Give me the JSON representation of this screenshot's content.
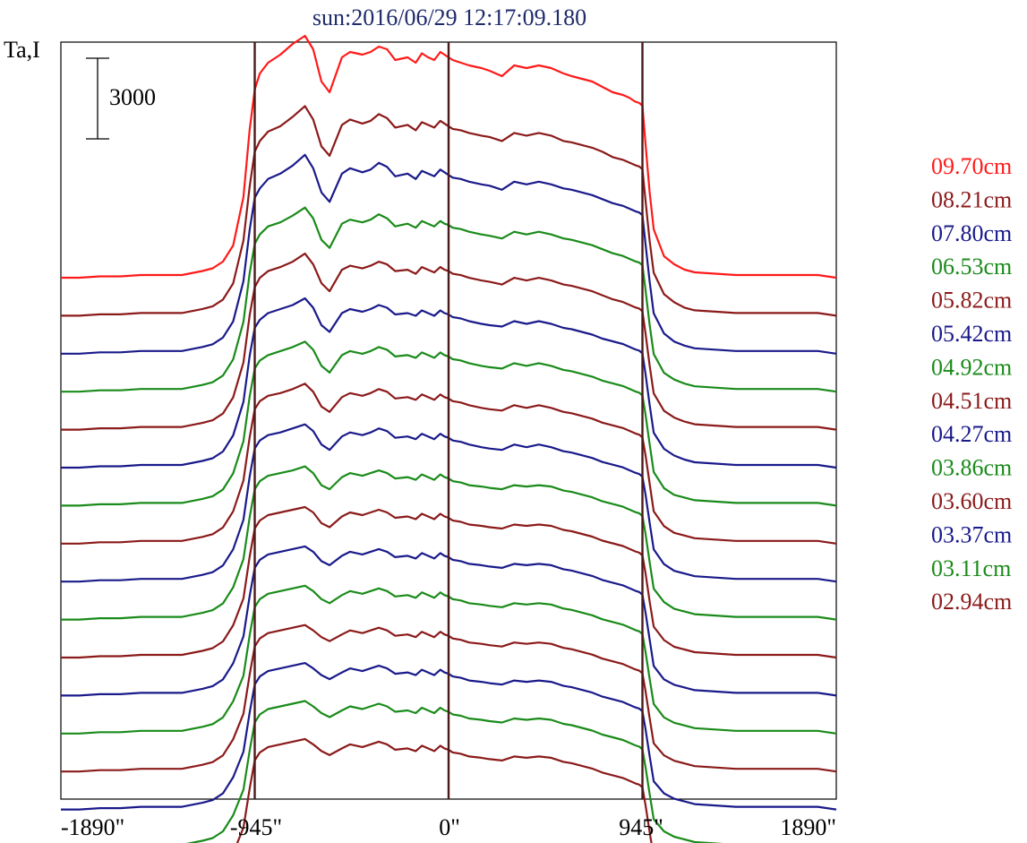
{
  "chart_data": {
    "type": "line",
    "title": "sun:2016/06/29 12:17:09.180",
    "ylabel": "Ta,I",
    "xlabel": "",
    "x_ticks": [
      "-1890\"",
      "-945\"",
      "0\"",
      "945\"",
      "1890\""
    ],
    "xlim": [
      -1890,
      1890
    ],
    "vlines": [
      -945,
      0,
      945
    ],
    "scale_bar": {
      "label": "3000",
      "value": 3000
    },
    "legend_position": "right",
    "grid": false,
    "profile_x": [
      -1890,
      -1800,
      -1700,
      -1600,
      -1500,
      -1400,
      -1300,
      -1200,
      -1150,
      -1100,
      -1050,
      -1000,
      -970,
      -945,
      -920,
      -880,
      -820,
      -760,
      -700,
      -660,
      -620,
      -580,
      -520,
      -480,
      -420,
      -380,
      -340,
      -300,
      -260,
      -200,
      -160,
      -130,
      -100,
      -70,
      -40,
      -20,
      0,
      20,
      60,
      100,
      160,
      200,
      260,
      320,
      380,
      440,
      500,
      560,
      600,
      650,
      700,
      750,
      800,
      850,
      880,
      910,
      930,
      945,
      960,
      980,
      1000,
      1050,
      1100,
      1150,
      1200,
      1300,
      1400,
      1500,
      1600,
      1700,
      1800,
      1890
    ],
    "series": [
      {
        "name": "09.70cm",
        "color": "#ff1a1a",
        "baseline": 0,
        "values": [
          0,
          0,
          50,
          50,
          100,
          100,
          100,
          250,
          350,
          600,
          1200,
          3000,
          5500,
          7000,
          7600,
          8000,
          8300,
          8700,
          9000,
          8500,
          7300,
          6900,
          8200,
          8400,
          8300,
          8400,
          8600,
          8500,
          8100,
          8200,
          8000,
          8350,
          8200,
          8100,
          8400,
          8300,
          8200,
          8100,
          8000,
          7900,
          7800,
          7700,
          7500,
          7900,
          7800,
          7900,
          7800,
          7600,
          7500,
          7400,
          7300,
          7100,
          6900,
          6800,
          6700,
          6550,
          6500,
          6400,
          5000,
          3200,
          1800,
          800,
          500,
          300,
          200,
          150,
          100,
          100,
          100,
          100,
          100,
          0
        ]
      },
      {
        "name": "08.21cm",
        "color": "#8b1a1a",
        "baseline": 0,
        "values": [
          0,
          0,
          50,
          50,
          100,
          100,
          100,
          250,
          350,
          600,
          1200,
          2800,
          4800,
          6100,
          6500,
          6850,
          7050,
          7400,
          7800,
          7300,
          6300,
          5950,
          7100,
          7300,
          7150,
          7250,
          7500,
          7350,
          7000,
          7100,
          6900,
          7200,
          7100,
          7000,
          7250,
          7150,
          7050,
          6950,
          6900,
          6800,
          6700,
          6650,
          6500,
          6800,
          6700,
          6800,
          6700,
          6500,
          6450,
          6350,
          6250,
          6100,
          5900,
          5800,
          5700,
          5600,
          5550,
          5450,
          4300,
          2800,
          1600,
          800,
          500,
          300,
          200,
          150,
          100,
          100,
          100,
          100,
          100,
          0
        ]
      },
      {
        "name": "07.80cm",
        "color": "#1a1a8b",
        "baseline": 0,
        "values": [
          0,
          0,
          50,
          50,
          100,
          100,
          100,
          250,
          350,
          600,
          1200,
          2700,
          4600,
          5800,
          6150,
          6500,
          6700,
          7000,
          7400,
          6900,
          6000,
          5650,
          6700,
          6900,
          6750,
          6850,
          7100,
          6950,
          6600,
          6700,
          6500,
          6800,
          6700,
          6600,
          6850,
          6750,
          6650,
          6550,
          6500,
          6400,
          6300,
          6250,
          6100,
          6400,
          6300,
          6400,
          6300,
          6150,
          6100,
          6000,
          5900,
          5750,
          5600,
          5500,
          5400,
          5300,
          5250,
          5150,
          4100,
          2700,
          1500,
          750,
          450,
          300,
          200,
          150,
          100,
          100,
          100,
          100,
          100,
          0
        ]
      },
      {
        "name": "06.53cm",
        "color": "#1a8b1a",
        "baseline": 0,
        "values": [
          0,
          0,
          50,
          50,
          100,
          100,
          100,
          250,
          350,
          600,
          1200,
          2600,
          4400,
          5500,
          5850,
          6150,
          6300,
          6550,
          6850,
          6450,
          5650,
          5350,
          6250,
          6400,
          6300,
          6400,
          6600,
          6450,
          6150,
          6250,
          6100,
          6350,
          6250,
          6150,
          6350,
          6250,
          6200,
          6100,
          6050,
          5950,
          5850,
          5800,
          5700,
          5950,
          5850,
          5950,
          5850,
          5700,
          5650,
          5550,
          5450,
          5300,
          5150,
          5050,
          4950,
          4850,
          4800,
          4700,
          3800,
          2500,
          1400,
          700,
          450,
          300,
          200,
          150,
          100,
          100,
          100,
          100,
          100,
          0
        ]
      },
      {
        "name": "05.82cm",
        "color": "#8b1a1a",
        "baseline": 0,
        "values": [
          0,
          0,
          50,
          50,
          100,
          100,
          100,
          250,
          350,
          600,
          1200,
          2500,
          4250,
          5300,
          5650,
          5900,
          6050,
          6250,
          6550,
          6150,
          5450,
          5150,
          5950,
          6100,
          6000,
          6100,
          6250,
          6150,
          5900,
          5950,
          5800,
          6050,
          5950,
          5850,
          6050,
          5950,
          5900,
          5800,
          5750,
          5650,
          5550,
          5500,
          5400,
          5650,
          5550,
          5650,
          5550,
          5400,
          5350,
          5250,
          5150,
          5000,
          4850,
          4750,
          4650,
          4550,
          4500,
          4400,
          3600,
          2400,
          1350,
          700,
          450,
          300,
          200,
          150,
          100,
          100,
          100,
          100,
          100,
          0
        ]
      },
      {
        "name": "05.42cm",
        "color": "#1a1a8b",
        "baseline": 0,
        "values": [
          0,
          0,
          50,
          50,
          100,
          100,
          100,
          250,
          350,
          600,
          1200,
          2450,
          4150,
          5200,
          5500,
          5750,
          5900,
          6050,
          6300,
          5950,
          5300,
          5050,
          5750,
          5900,
          5800,
          5900,
          6050,
          5950,
          5700,
          5750,
          5650,
          5850,
          5750,
          5650,
          5850,
          5750,
          5700,
          5600,
          5550,
          5450,
          5350,
          5300,
          5250,
          5450,
          5350,
          5450,
          5350,
          5200,
          5150,
          5050,
          4950,
          4800,
          4700,
          4600,
          4500,
          4400,
          4350,
          4250,
          3500,
          2350,
          1300,
          700,
          450,
          300,
          200,
          150,
          100,
          100,
          100,
          100,
          100,
          0
        ]
      },
      {
        "name": "04.92cm",
        "color": "#1a8b1a",
        "baseline": 0,
        "values": [
          0,
          0,
          50,
          50,
          100,
          100,
          100,
          250,
          350,
          600,
          1200,
          2400,
          4050,
          5100,
          5400,
          5600,
          5750,
          5900,
          6100,
          5800,
          5200,
          4950,
          5600,
          5750,
          5650,
          5750,
          5900,
          5800,
          5550,
          5600,
          5500,
          5700,
          5600,
          5500,
          5700,
          5600,
          5550,
          5450,
          5400,
          5300,
          5200,
          5150,
          5100,
          5300,
          5200,
          5300,
          5200,
          5050,
          5000,
          4900,
          4800,
          4650,
          4550,
          4450,
          4350,
          4250,
          4200,
          4100,
          3400,
          2300,
          1250,
          650,
          400,
          300,
          200,
          150,
          100,
          100,
          100,
          100,
          100,
          0
        ]
      },
      {
        "name": "04.51cm",
        "color": "#8b1a1a",
        "baseline": 0,
        "values": [
          0,
          0,
          50,
          50,
          100,
          100,
          100,
          250,
          350,
          600,
          1200,
          2350,
          3950,
          5000,
          5300,
          5500,
          5600,
          5750,
          5950,
          5650,
          5100,
          4900,
          5450,
          5600,
          5500,
          5600,
          5750,
          5650,
          5400,
          5450,
          5350,
          5550,
          5450,
          5350,
          5550,
          5450,
          5400,
          5300,
          5250,
          5150,
          5050,
          5000,
          4950,
          5150,
          5050,
          5150,
          5050,
          4900,
          4850,
          4750,
          4650,
          4500,
          4400,
          4300,
          4200,
          4100,
          4050,
          3950,
          3300,
          2250,
          1200,
          650,
          400,
          300,
          200,
          150,
          100,
          100,
          100,
          100,
          100,
          0
        ]
      },
      {
        "name": "04.27cm",
        "color": "#1a1a8b",
        "baseline": 0,
        "values": [
          0,
          0,
          50,
          50,
          100,
          100,
          100,
          250,
          350,
          600,
          1200,
          2300,
          3900,
          4950,
          5250,
          5450,
          5550,
          5700,
          5850,
          5600,
          5100,
          4900,
          5400,
          5550,
          5450,
          5550,
          5700,
          5600,
          5350,
          5400,
          5300,
          5500,
          5400,
          5300,
          5500,
          5400,
          5350,
          5250,
          5200,
          5100,
          5000,
          4950,
          4900,
          5100,
          5000,
          5100,
          5000,
          4850,
          4800,
          4700,
          4600,
          4450,
          4350,
          4250,
          4150,
          4050,
          4000,
          3900,
          3250,
          2200,
          1200,
          650,
          400,
          300,
          200,
          150,
          100,
          100,
          100,
          100,
          100,
          0
        ]
      },
      {
        "name": "03.86cm",
        "color": "#1a8b1a",
        "baseline": 0,
        "values": [
          0,
          0,
          50,
          50,
          100,
          100,
          100,
          250,
          350,
          600,
          1200,
          2250,
          3800,
          4850,
          5150,
          5350,
          5450,
          5550,
          5700,
          5450,
          5000,
          4850,
          5300,
          5450,
          5350,
          5450,
          5550,
          5450,
          5250,
          5300,
          5200,
          5400,
          5300,
          5200,
          5400,
          5300,
          5250,
          5150,
          5100,
          5000,
          4950,
          4900,
          4850,
          5000,
          4950,
          5000,
          4950,
          4800,
          4750,
          4650,
          4550,
          4400,
          4300,
          4200,
          4100,
          4000,
          3950,
          3850,
          3200,
          2150,
          1150,
          650,
          400,
          300,
          200,
          150,
          100,
          100,
          100,
          100,
          100,
          0
        ]
      },
      {
        "name": "03.60cm",
        "color": "#8b1a1a",
        "baseline": 0,
        "values": [
          0,
          0,
          50,
          50,
          100,
          100,
          100,
          250,
          350,
          600,
          1200,
          2200,
          3750,
          4800,
          5100,
          5300,
          5400,
          5500,
          5600,
          5400,
          5000,
          4850,
          5250,
          5400,
          5300,
          5400,
          5500,
          5400,
          5200,
          5250,
          5150,
          5350,
          5250,
          5150,
          5350,
          5250,
          5200,
          5100,
          5050,
          4950,
          4900,
          4850,
          4800,
          4950,
          4900,
          4950,
          4900,
          4750,
          4700,
          4600,
          4500,
          4350,
          4250,
          4150,
          4050,
          3950,
          3900,
          3800,
          3150,
          2100,
          1150,
          650,
          400,
          300,
          200,
          150,
          100,
          100,
          100,
          100,
          100,
          0
        ]
      },
      {
        "name": "03.37cm",
        "color": "#1a1a8b",
        "baseline": 0,
        "values": [
          0,
          0,
          50,
          50,
          100,
          100,
          100,
          250,
          350,
          600,
          1200,
          2200,
          3700,
          4750,
          5050,
          5250,
          5350,
          5450,
          5550,
          5350,
          5000,
          4850,
          5200,
          5350,
          5250,
          5350,
          5450,
          5350,
          5150,
          5200,
          5100,
          5300,
          5200,
          5100,
          5300,
          5200,
          5150,
          5050,
          5000,
          4900,
          4850,
          4800,
          4750,
          4900,
          4850,
          4900,
          4850,
          4700,
          4650,
          4550,
          4450,
          4300,
          4200,
          4100,
          4000,
          3900,
          3850,
          3750,
          3100,
          2100,
          1100,
          600,
          400,
          300,
          200,
          150,
          100,
          100,
          100,
          100,
          100,
          0
        ]
      },
      {
        "name": "03.11cm",
        "color": "#1a8b1a",
        "baseline": 0,
        "values": [
          0,
          0,
          50,
          50,
          100,
          100,
          100,
          250,
          350,
          600,
          1200,
          2150,
          3650,
          4700,
          5000,
          5200,
          5300,
          5400,
          5500,
          5300,
          5000,
          4850,
          5150,
          5300,
          5200,
          5300,
          5400,
          5300,
          5100,
          5150,
          5050,
          5250,
          5150,
          5050,
          5250,
          5150,
          5100,
          5000,
          4950,
          4850,
          4800,
          4750,
          4700,
          4850,
          4800,
          4850,
          4800,
          4650,
          4600,
          4500,
          4400,
          4250,
          4150,
          4050,
          3950,
          3850,
          3800,
          3700,
          3050,
          2050,
          1100,
          600,
          400,
          300,
          200,
          150,
          100,
          100,
          100,
          100,
          100,
          0
        ]
      },
      {
        "name": "02.94cm",
        "color": "#8b1a1a",
        "baseline": 0,
        "values": [
          0,
          0,
          50,
          50,
          100,
          100,
          100,
          250,
          350,
          600,
          1200,
          2150,
          3600,
          4650,
          4950,
          5150,
          5250,
          5350,
          5450,
          5250,
          5000,
          4850,
          5100,
          5250,
          5150,
          5250,
          5350,
          5250,
          5050,
          5100,
          5000,
          5200,
          5100,
          5000,
          5200,
          5100,
          5050,
          4950,
          4900,
          4800,
          4750,
          4700,
          4650,
          4800,
          4750,
          4800,
          4750,
          4600,
          4550,
          4450,
          4350,
          4200,
          4100,
          4000,
          3900,
          3800,
          3750,
          3650,
          3000,
          2000,
          1050,
          600,
          400,
          300,
          200,
          150,
          100,
          100,
          100,
          100,
          100,
          0
        ]
      }
    ],
    "extra_unlabeled_series": [
      {
        "color": "#1a1a8b"
      },
      {
        "color": "#1a8b1a"
      },
      {
        "color": "#8b1a1a"
      }
    ]
  }
}
